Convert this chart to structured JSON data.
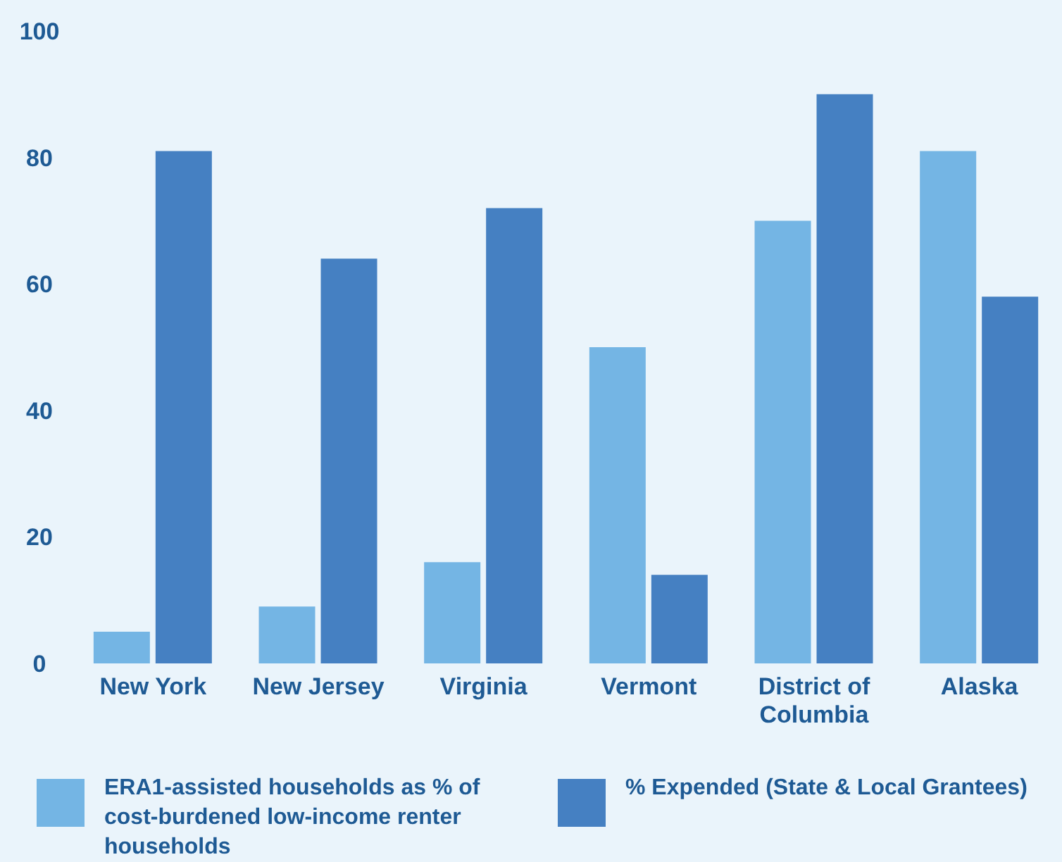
{
  "chart_data": {
    "type": "bar",
    "categories": [
      "New York",
      "New Jersey",
      "Virginia",
      "Vermont",
      "District of Columbia",
      "Alaska"
    ],
    "series": [
      {
        "name": "ERA1-assisted households as % of cost-burdened low-income renter households",
        "color": "#74b5e4",
        "values": [
          5,
          9,
          16,
          50,
          70,
          81
        ]
      },
      {
        "name": "% Expended (State & Local Grantees)",
        "color": "#4580c2",
        "values": [
          81,
          64,
          72,
          14,
          90,
          58
        ]
      }
    ],
    "ylim": [
      0,
      100
    ],
    "yticks": [
      0,
      20,
      40,
      60,
      80,
      100
    ],
    "grid": false,
    "legend": "bottom"
  }
}
